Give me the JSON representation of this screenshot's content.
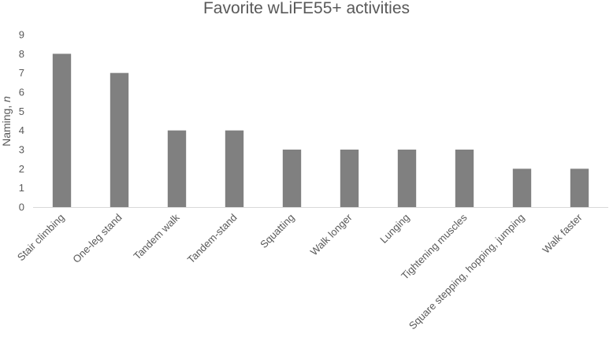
{
  "chart_data": {
    "type": "bar",
    "title": "Favorite wLiFE55+ activities",
    "xlabel": "",
    "ylabel_text": "Naming, ",
    "ylabel_italic": "n",
    "categories": [
      "Stair climbing",
      "One-leg stand",
      "Tandem walk",
      "Tandem-stand",
      "Squatting",
      "Walk longer",
      "Lunging",
      "Tightening muscles",
      "Square stepping, hopping, jumping",
      "Walk faster"
    ],
    "values": [
      8,
      7,
      4,
      4,
      3,
      3,
      3,
      3,
      2,
      2
    ],
    "ylim": [
      0,
      9
    ],
    "yticks": [
      "0",
      "1",
      "2",
      "3",
      "4",
      "5",
      "6",
      "7",
      "8",
      "9"
    ],
    "grid": false,
    "legend": "none",
    "colors": {
      "bar": "#808080",
      "axis": "#d9d9d9",
      "text": "#595959"
    }
  }
}
